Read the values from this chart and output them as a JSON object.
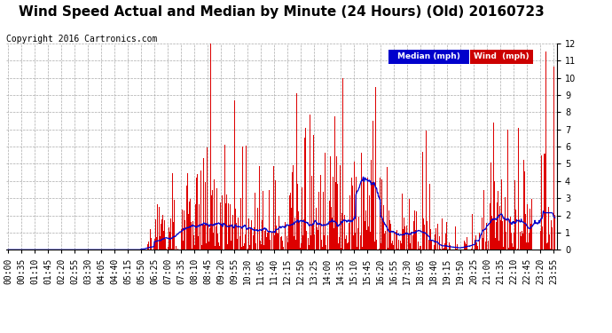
{
  "title": "Wind Speed Actual and Median by Minute (24 Hours) (Old) 20160723",
  "copyright": "Copyright 2016 Cartronics.com",
  "ylim": [
    0.0,
    12.0
  ],
  "yticks": [
    0.0,
    1.0,
    2.0,
    3.0,
    4.0,
    5.0,
    6.0,
    7.0,
    8.0,
    9.0,
    10.0,
    11.0,
    12.0
  ],
  "legend_median_label": "Median (mph)",
  "legend_wind_label": "Wind  (mph)",
  "legend_median_bg": "#0000cc",
  "legend_wind_bg": "#cc0000",
  "bar_color": "#dd0000",
  "line_color": "#0000cc",
  "background_color": "#ffffff",
  "title_fontsize": 11,
  "tick_label_fontsize": 7,
  "copyright_fontsize": 7
}
